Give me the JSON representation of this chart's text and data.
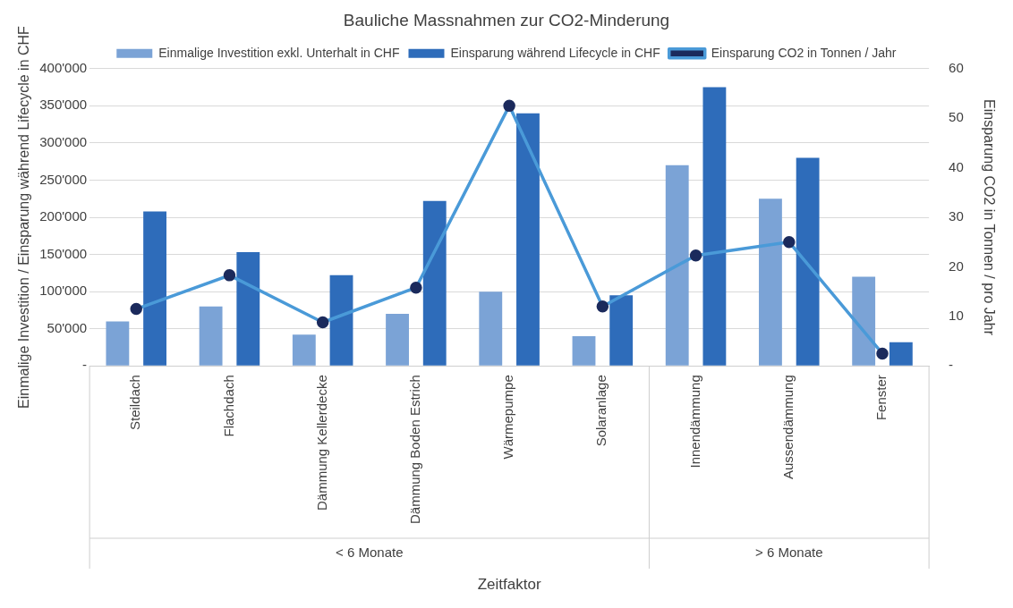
{
  "chart_data": {
    "type": "bar",
    "title": "Bauliche Massnahmen zur CO2-Minderung",
    "xlabel": "Zeitfaktor",
    "ylabel": "Einmalige Investition / Einsparung während Lifecycle in CHF",
    "y2label": "Einsparung CO2 in Tonnen / pro Jahr",
    "categories": [
      "Steildach",
      "Flachdach",
      "Dämmung Kellerdecke",
      "Dämmung Boden Estrich",
      "Wärmepumpe",
      "Solaranlage",
      "Innendämmung",
      "Aussendämmung",
      "Fenster"
    ],
    "series": [
      {
        "name": "Einmalige Investition exkl. Unterhalt in CHF",
        "color": "#7ba3d6",
        "values": [
          60000,
          80000,
          42000,
          70000,
          100000,
          40000,
          270000,
          225000,
          120000
        ]
      },
      {
        "name": "Einsparung während Lifecycle in CHF",
        "color": "#2e6cba",
        "values": [
          208000,
          153000,
          122000,
          222000,
          340000,
          95000,
          375000,
          280000,
          32000
        ]
      },
      {
        "name": "Einsparung CO2 in Tonnen / Jahr",
        "type": "line",
        "axis": "y2",
        "color": "#4a9ad8",
        "values": [
          11.5,
          18.3,
          8.8,
          15.8,
          52.5,
          12,
          22.3,
          25,
          2.5
        ]
      }
    ],
    "ylim": [
      0,
      400000
    ],
    "yticks": [
      {
        "value": 0,
        "label": "-"
      },
      {
        "value": 50000,
        "label": "50'000"
      },
      {
        "value": 100000,
        "label": "100'000"
      },
      {
        "value": 150000,
        "label": "150'000"
      },
      {
        "value": 200000,
        "label": "200'000"
      },
      {
        "value": 250000,
        "label": "250'000"
      },
      {
        "value": 300000,
        "label": "300'000"
      },
      {
        "value": 350000,
        "label": "350'000"
      },
      {
        "value": 400000,
        "label": "400'000"
      }
    ],
    "y2lim": [
      0,
      60
    ],
    "y2ticks": [
      {
        "value": 0,
        "label": "-"
      },
      10,
      20,
      30,
      40,
      50,
      60
    ],
    "annotations": [
      "< 6 Monate",
      "> 6 Monate"
    ],
    "grid": "y",
    "legend": "top",
    "marker": "circle"
  }
}
